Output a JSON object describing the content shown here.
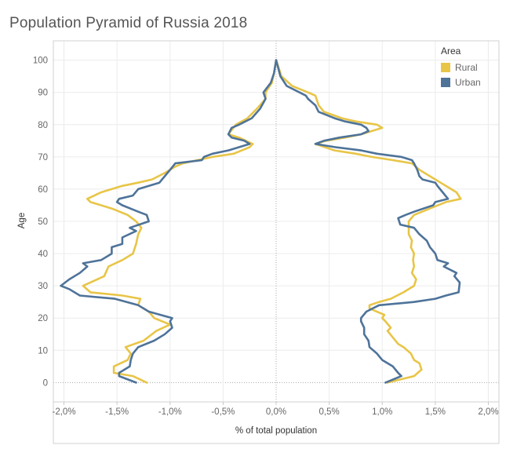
{
  "title": "Population Pyramid of Russia 2018",
  "legend": {
    "title": "Area",
    "items": [
      {
        "label": "Rural",
        "color": "#e8c547"
      },
      {
        "label": "Urban",
        "color": "#4e7399"
      }
    ]
  },
  "chart_data": {
    "type": "line",
    "title": "Population Pyramid of Russia 2018",
    "xlabel": "% of total population",
    "ylabel": "Age",
    "xlim": [
      -2.1,
      2.1
    ],
    "ylim": [
      -6,
      106
    ],
    "x_ticks": [
      {
        "value": -2.0,
        "label": "-2,0%"
      },
      {
        "value": -1.5,
        "label": "-1,5%"
      },
      {
        "value": -1.0,
        "label": "-1,0%"
      },
      {
        "value": -0.5,
        "label": "-0,5%"
      },
      {
        "value": 0.0,
        "label": "0,0%"
      },
      {
        "value": 0.5,
        "label": "0,5%"
      },
      {
        "value": 1.0,
        "label": "1,0%"
      },
      {
        "value": 1.5,
        "label": "1,5%"
      },
      {
        "value": 2.0,
        "label": "2,0%"
      }
    ],
    "y_ticks": [
      0,
      10,
      20,
      30,
      40,
      50,
      60,
      70,
      80,
      90,
      100
    ],
    "grid": true,
    "legend_position": "top-right",
    "series": [
      {
        "name": "Rural",
        "color": "#e8c547",
        "segments": [
          {
            "side": "male",
            "points": [
              [
                -1.22,
                0
              ],
              [
                -1.35,
                2
              ],
              [
                -1.53,
                3
              ],
              [
                -1.53,
                5
              ],
              [
                -1.4,
                7
              ],
              [
                -1.37,
                9
              ],
              [
                -1.42,
                11
              ],
              [
                -1.25,
                13
              ],
              [
                -1.13,
                16
              ],
              [
                -1.0,
                18
              ],
              [
                -1.15,
                20
              ],
              [
                -1.2,
                22
              ],
              [
                -1.3,
                24
              ],
              [
                -1.28,
                26
              ],
              [
                -1.45,
                27
              ],
              [
                -1.75,
                28
              ],
              [
                -1.82,
                30
              ],
              [
                -1.62,
                33
              ],
              [
                -1.58,
                36
              ],
              [
                -1.45,
                38
              ],
              [
                -1.35,
                40
              ],
              [
                -1.32,
                43
              ],
              [
                -1.3,
                46
              ],
              [
                -1.27,
                48
              ],
              [
                -1.32,
                50
              ],
              [
                -1.4,
                52
              ],
              [
                -1.55,
                54
              ],
              [
                -1.75,
                56
              ],
              [
                -1.78,
                57
              ],
              [
                -1.65,
                59
              ],
              [
                -1.45,
                61
              ],
              [
                -1.3,
                62
              ],
              [
                -1.17,
                63
              ],
              [
                -1.05,
                65
              ],
              [
                -0.95,
                67
              ],
              [
                -0.88,
                68
              ],
              [
                -0.6,
                70
              ],
              [
                -0.4,
                71
              ],
              [
                -0.25,
                73
              ],
              [
                -0.22,
                74
              ],
              [
                -0.35,
                76
              ],
              [
                -0.45,
                77
              ],
              [
                -0.38,
                80
              ],
              [
                -0.27,
                82
              ],
              [
                -0.18,
                85
              ],
              [
                -0.1,
                88
              ],
              [
                -0.1,
                90
              ],
              [
                -0.04,
                93
              ],
              [
                -0.02,
                96
              ],
              [
                0.0,
                100
              ]
            ]
          },
          {
            "side": "female",
            "points": [
              [
                1.05,
                0
              ],
              [
                1.3,
                2
              ],
              [
                1.37,
                4
              ],
              [
                1.35,
                6
              ],
              [
                1.3,
                7
              ],
              [
                1.27,
                9
              ],
              [
                1.2,
                11
              ],
              [
                1.15,
                12
              ],
              [
                1.1,
                14
              ],
              [
                1.05,
                16
              ],
              [
                1.08,
                17
              ],
              [
                1.03,
                19
              ],
              [
                1.0,
                20
              ],
              [
                1.02,
                21
              ],
              [
                0.88,
                23
              ],
              [
                0.88,
                24
              ],
              [
                0.97,
                25
              ],
              [
                1.08,
                26
              ],
              [
                1.2,
                28
              ],
              [
                1.3,
                30
              ],
              [
                1.32,
                32
              ],
              [
                1.28,
                34
              ],
              [
                1.3,
                36
              ],
              [
                1.29,
                38
              ],
              [
                1.3,
                40
              ],
              [
                1.27,
                42
              ],
              [
                1.28,
                44
              ],
              [
                1.25,
                46
              ],
              [
                1.25,
                48
              ],
              [
                1.25,
                50
              ],
              [
                1.3,
                52
              ],
              [
                1.45,
                54
              ],
              [
                1.6,
                56
              ],
              [
                1.74,
                57
              ],
              [
                1.7,
                59
              ],
              [
                1.65,
                60
              ],
              [
                1.55,
                62
              ],
              [
                1.45,
                64
              ],
              [
                1.35,
                66
              ],
              [
                1.28,
                68
              ],
              [
                1.1,
                69
              ],
              [
                0.9,
                70
              ],
              [
                0.75,
                71
              ],
              [
                0.55,
                72
              ],
              [
                0.37,
                74
              ],
              [
                0.47,
                75
              ],
              [
                0.65,
                76
              ],
              [
                0.8,
                77
              ],
              [
                0.9,
                78
              ],
              [
                1.0,
                79
              ],
              [
                0.95,
                80
              ],
              [
                0.75,
                81
              ],
              [
                0.62,
                82
              ],
              [
                0.45,
                84
              ],
              [
                0.4,
                86
              ],
              [
                0.38,
                88
              ],
              [
                0.37,
                89
              ],
              [
                0.3,
                90
              ],
              [
                0.15,
                92
              ],
              [
                0.05,
                95
              ],
              [
                0.0,
                100
              ]
            ]
          }
        ]
      },
      {
        "name": "Urban",
        "color": "#4e7399",
        "segments": [
          {
            "side": "male",
            "points": [
              [
                -1.32,
                0
              ],
              [
                -1.48,
                2
              ],
              [
                -1.48,
                3
              ],
              [
                -1.38,
                5
              ],
              [
                -1.37,
                7
              ],
              [
                -1.35,
                9
              ],
              [
                -1.3,
                11
              ],
              [
                -1.15,
                13
              ],
              [
                -1.05,
                15
              ],
              [
                -0.98,
                17
              ],
              [
                -1.0,
                19
              ],
              [
                -0.98,
                20
              ],
              [
                -1.2,
                22
              ],
              [
                -1.3,
                24
              ],
              [
                -1.52,
                26
              ],
              [
                -1.85,
                27
              ],
              [
                -1.95,
                29
              ],
              [
                -2.03,
                30
              ],
              [
                -1.95,
                32
              ],
              [
                -1.85,
                34
              ],
              [
                -1.78,
                36
              ],
              [
                -1.82,
                37
              ],
              [
                -1.65,
                38
              ],
              [
                -1.55,
                40
              ],
              [
                -1.55,
                42
              ],
              [
                -1.45,
                43
              ],
              [
                -1.45,
                45
              ],
              [
                -1.32,
                47
              ],
              [
                -1.38,
                48
              ],
              [
                -1.2,
                50
              ],
              [
                -1.22,
                52
              ],
              [
                -1.3,
                53
              ],
              [
                -1.45,
                55
              ],
              [
                -1.5,
                56
              ],
              [
                -1.48,
                57
              ],
              [
                -1.35,
                58
              ],
              [
                -1.3,
                60
              ],
              [
                -1.1,
                62
              ],
              [
                -1.05,
                64
              ],
              [
                -1.0,
                66
              ],
              [
                -0.95,
                68
              ],
              [
                -0.7,
                69
              ],
              [
                -0.68,
                70
              ],
              [
                -0.6,
                71
              ],
              [
                -0.45,
                72
              ],
              [
                -0.25,
                74
              ],
              [
                -0.3,
                75
              ],
              [
                -0.42,
                76
              ],
              [
                -0.45,
                77
              ],
              [
                -0.42,
                79
              ],
              [
                -0.35,
                80
              ],
              [
                -0.23,
                82
              ],
              [
                -0.15,
                85
              ],
              [
                -0.1,
                88
              ],
              [
                -0.12,
                90
              ],
              [
                -0.05,
                93
              ],
              [
                -0.02,
                96
              ],
              [
                0.0,
                100
              ]
            ]
          },
          {
            "side": "female",
            "points": [
              [
                1.03,
                0
              ],
              [
                1.18,
                2
              ],
              [
                1.15,
                3
              ],
              [
                1.1,
                5
              ],
              [
                1.0,
                7
              ],
              [
                0.95,
                9
              ],
              [
                0.88,
                11
              ],
              [
                0.87,
                13
              ],
              [
                0.83,
                15
              ],
              [
                0.83,
                17
              ],
              [
                0.8,
                19
              ],
              [
                0.8,
                20
              ],
              [
                0.85,
                22
              ],
              [
                0.97,
                24
              ],
              [
                1.3,
                25
              ],
              [
                1.5,
                26
              ],
              [
                1.6,
                27
              ],
              [
                1.72,
                28
              ],
              [
                1.73,
                31
              ],
              [
                1.68,
                33
              ],
              [
                1.7,
                34
              ],
              [
                1.58,
                36
              ],
              [
                1.62,
                37
              ],
              [
                1.52,
                38
              ],
              [
                1.5,
                40
              ],
              [
                1.45,
                42
              ],
              [
                1.42,
                44
              ],
              [
                1.35,
                46
              ],
              [
                1.3,
                48
              ],
              [
                1.17,
                49
              ],
              [
                1.15,
                51
              ],
              [
                1.22,
                52
              ],
              [
                1.3,
                53
              ],
              [
                1.48,
                55
              ],
              [
                1.5,
                56
              ],
              [
                1.62,
                57
              ],
              [
                1.57,
                59
              ],
              [
                1.52,
                61
              ],
              [
                1.5,
                62
              ],
              [
                1.38,
                63
              ],
              [
                1.35,
                64
              ],
              [
                1.33,
                66
              ],
              [
                1.3,
                68
              ],
              [
                1.28,
                69
              ],
              [
                1.18,
                70
              ],
              [
                0.95,
                71
              ],
              [
                0.8,
                72
              ],
              [
                0.56,
                73
              ],
              [
                0.37,
                74
              ],
              [
                0.45,
                75
              ],
              [
                0.6,
                76
              ],
              [
                0.8,
                77
              ],
              [
                0.87,
                78
              ],
              [
                0.85,
                79
              ],
              [
                0.8,
                80
              ],
              [
                0.65,
                81
              ],
              [
                0.55,
                82
              ],
              [
                0.4,
                84
              ],
              [
                0.37,
                86
              ],
              [
                0.3,
                88
              ],
              [
                0.28,
                89
              ],
              [
                0.22,
                90
              ],
              [
                0.1,
                92
              ],
              [
                0.04,
                95
              ],
              [
                0.0,
                100
              ]
            ]
          }
        ]
      }
    ]
  }
}
